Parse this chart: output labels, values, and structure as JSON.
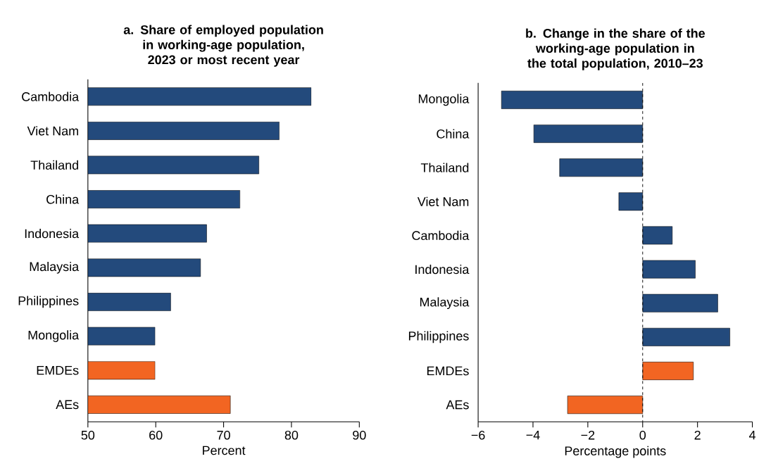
{
  "chart_data": [
    {
      "type": "bar",
      "orientation": "horizontal",
      "title": "a. Share of employed population in working-age population, 2023 or most recent year",
      "xlabel": "Percent",
      "categories": [
        "Cambodia",
        "Viet Nam",
        "Thailand",
        "China",
        "Indonesia",
        "Malaysia",
        "Philippines",
        "Mongolia",
        "EMDEs",
        "AEs"
      ],
      "values": [
        82.9,
        78.2,
        75.2,
        72.4,
        67.5,
        66.6,
        62.2,
        59.9,
        59.9,
        71.0
      ],
      "colors": [
        "#234a7c",
        "#234a7c",
        "#234a7c",
        "#234a7c",
        "#234a7c",
        "#234a7c",
        "#234a7c",
        "#234a7c",
        "#f26522",
        "#f26522"
      ],
      "xlim": [
        50,
        90
      ],
      "xticks": [
        50,
        60,
        70,
        80,
        90
      ]
    },
    {
      "type": "bar",
      "orientation": "horizontal",
      "title": "b. Change in the share of the working-age population in the total population, 2010–23",
      "xlabel": "Percentage points",
      "categories": [
        "Mongolia",
        "China",
        "Thailand",
        "Viet Nam",
        "Cambodia",
        "Indonesia",
        "Malaysia",
        "Philippines",
        "EMDEs",
        "AEs"
      ],
      "values": [
        -5.15,
        -3.97,
        -3.03,
        -0.87,
        1.08,
        1.92,
        2.74,
        3.18,
        1.85,
        -2.74
      ],
      "colors": [
        "#234a7c",
        "#234a7c",
        "#234a7c",
        "#234a7c",
        "#234a7c",
        "#234a7c",
        "#234a7c",
        "#234a7c",
        "#f26522",
        "#f26522"
      ],
      "xlim": [
        -6,
        4
      ],
      "xticks": [
        {
          "value": -6,
          "label": "−6"
        },
        {
          "value": -4,
          "label": "−4"
        },
        {
          "value": -2,
          "label": "−2"
        },
        0,
        2,
        4
      ],
      "ref_lines": [
        {
          "axis": "x",
          "value": 0,
          "line_style": "dashed"
        }
      ]
    }
  ]
}
